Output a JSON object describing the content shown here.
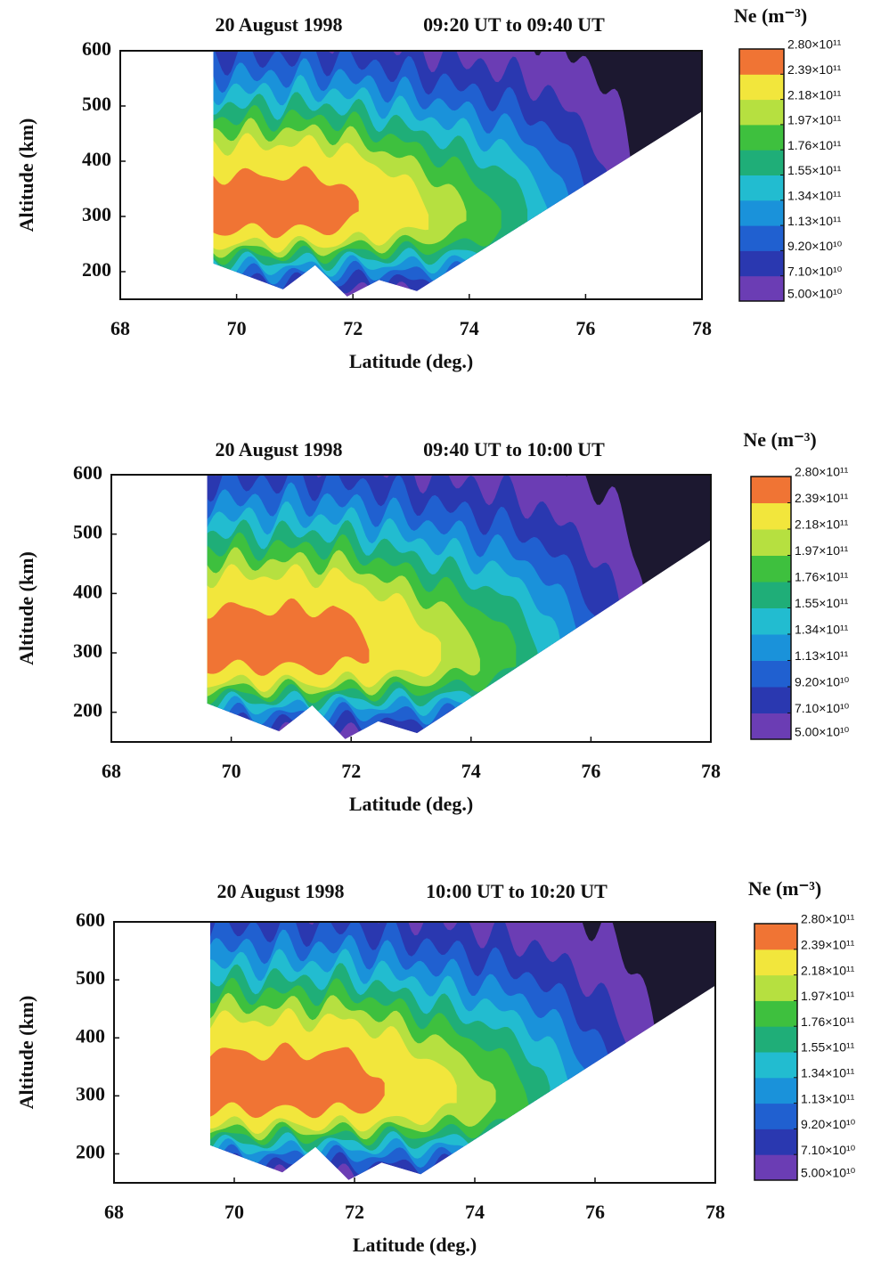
{
  "chart_data": [
    {
      "type": "contour",
      "title": "20 August 1998",
      "subtitle": "09:20 UT to 09:40 UT",
      "x_label": "Latitude (deg.)",
      "y_label": "Altitude (km)",
      "colorbar_label": "Ne (m⁻³)",
      "xlim": [
        68,
        78
      ],
      "xticks": [
        68,
        70,
        72,
        74,
        76,
        78
      ],
      "ylim": [
        150,
        600
      ],
      "yticks": [
        200,
        300,
        400,
        500,
        600
      ],
      "levels": [
        {
          "value": 50000000000,
          "label": "5.00×10¹⁰"
        },
        {
          "value": 71000000000,
          "label": "7.10×10¹⁰"
        },
        {
          "value": 92000000000,
          "label": "9.20×10¹⁰"
        },
        {
          "value": 113000000000,
          "label": "1.13×10¹¹"
        },
        {
          "value": 134000000000,
          "label": "1.34×10¹¹"
        },
        {
          "value": 155000000000,
          "label": "1.55×10¹¹"
        },
        {
          "value": 176000000000,
          "label": "1.76×10¹¹"
        },
        {
          "value": 197000000000,
          "label": "1.97×10¹¹"
        },
        {
          "value": 218000000000,
          "label": "2.18×10¹¹"
        },
        {
          "value": 239000000000,
          "label": "2.39×10¹¹"
        },
        {
          "value": 280000000000,
          "label": "2.80×10¹¹"
        }
      ],
      "colors": [
        "#1c1830",
        "#6b3db4",
        "#2a38b0",
        "#2060d0",
        "#1a92da",
        "#22bcd0",
        "#1fae78",
        "#3ec03e",
        "#b6e040",
        "#f2e63c",
        "#f07434"
      ]
    },
    {
      "type": "contour",
      "title": "20 August 1998",
      "subtitle": "09:40 UT to 10:00 UT",
      "x_label": "Latitude (deg.)",
      "y_label": "Altitude (km)",
      "colorbar_label": "Ne (m⁻³)",
      "xlim": [
        68,
        78
      ],
      "xticks": [
        68,
        70,
        72,
        74,
        76,
        78
      ],
      "ylim": [
        150,
        600
      ],
      "yticks": [
        200,
        300,
        400,
        500,
        600
      ],
      "levels": [
        {
          "value": 50000000000,
          "label": "5.00×10¹⁰"
        },
        {
          "value": 71000000000,
          "label": "7.10×10¹⁰"
        },
        {
          "value": 92000000000,
          "label": "9.20×10¹⁰"
        },
        {
          "value": 113000000000,
          "label": "1.13×10¹¹"
        },
        {
          "value": 134000000000,
          "label": "1.34×10¹¹"
        },
        {
          "value": 155000000000,
          "label": "1.55×10¹¹"
        },
        {
          "value": 176000000000,
          "label": "1.76×10¹¹"
        },
        {
          "value": 197000000000,
          "label": "1.97×10¹¹"
        },
        {
          "value": 218000000000,
          "label": "2.18×10¹¹"
        },
        {
          "value": 239000000000,
          "label": "2.39×10¹¹"
        },
        {
          "value": 280000000000,
          "label": "2.80×10¹¹"
        }
      ],
      "colors": [
        "#1c1830",
        "#6b3db4",
        "#2a38b0",
        "#2060d0",
        "#1a92da",
        "#22bcd0",
        "#1fae78",
        "#3ec03e",
        "#b6e040",
        "#f2e63c",
        "#f07434"
      ]
    },
    {
      "type": "contour",
      "title": "20 August 1998",
      "subtitle": "10:00 UT to 10:20 UT",
      "x_label": "Latitude (deg.)",
      "y_label": "Altitude (km)",
      "colorbar_label": "Ne (m⁻³)",
      "xlim": [
        68,
        78
      ],
      "xticks": [
        68,
        70,
        72,
        74,
        76,
        78
      ],
      "ylim": [
        150,
        600
      ],
      "yticks": [
        200,
        300,
        400,
        500,
        600
      ],
      "levels": [
        {
          "value": 50000000000,
          "label": "5.00×10¹⁰"
        },
        {
          "value": 71000000000,
          "label": "7.10×10¹⁰"
        },
        {
          "value": 92000000000,
          "label": "9.20×10¹⁰"
        },
        {
          "value": 113000000000,
          "label": "1.13×10¹¹"
        },
        {
          "value": 134000000000,
          "label": "1.34×10¹¹"
        },
        {
          "value": 155000000000,
          "label": "1.55×10¹¹"
        },
        {
          "value": 176000000000,
          "label": "1.76×10¹¹"
        },
        {
          "value": 197000000000,
          "label": "1.97×10¹¹"
        },
        {
          "value": 218000000000,
          "label": "2.18×10¹¹"
        },
        {
          "value": 239000000000,
          "label": "2.39×10¹¹"
        },
        {
          "value": 280000000000,
          "label": "2.80×10¹¹"
        }
      ],
      "colors": [
        "#1c1830",
        "#6b3db4",
        "#2a38b0",
        "#2060d0",
        "#1a92da",
        "#22bcd0",
        "#1fae78",
        "#3ec03e",
        "#b6e040",
        "#f2e63c",
        "#f07434"
      ]
    }
  ]
}
